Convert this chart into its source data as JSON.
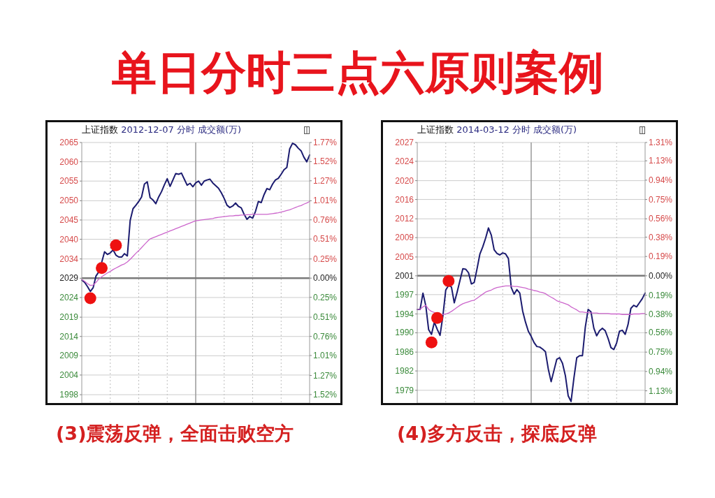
{
  "chart_data": [
    {
      "type": "line",
      "title": "单日分时三点六原则案例",
      "subtitle": "上证指数 2012-12-07 分时 成交额(万)",
      "annotations": [
        "(3)震荡反弹，全面击败空方"
      ],
      "categories": [
        null,
        null,
        null,
        null,
        null,
        null,
        null,
        null,
        null,
        null,
        null,
        null,
        null,
        null,
        null,
        null,
        null,
        null,
        null,
        null,
        null,
        null,
        null,
        null,
        null,
        null,
        null,
        null,
        null,
        null,
        null,
        null,
        null,
        null,
        null,
        null,
        null,
        null,
        null,
        null,
        null,
        null,
        null,
        null,
        null,
        null,
        null,
        null,
        null,
        null,
        null,
        null,
        null,
        null,
        null,
        null,
        null,
        null,
        null,
        null,
        null,
        null,
        null,
        null,
        null,
        null,
        null,
        null,
        null,
        null,
        null,
        null,
        null,
        null,
        null,
        null,
        null,
        null,
        null,
        null,
        null
      ],
      "series": [
        {
          "color": "#1b1b6f",
          "values": [
            2028.8,
            2028.2,
            2027.1,
            2025.8,
            2026.8,
            2029.9,
            2031.0,
            2033.5,
            2036.3,
            2035.6,
            2036.0,
            2036.8,
            2035.4,
            2034.9,
            2034.9,
            2035.8,
            2035.2,
            2044.6,
            2047.7,
            2048.6,
            2049.6,
            2050.8,
            2054.2,
            2054.8,
            2050.6,
            2050.0,
            2049.0,
            2050.8,
            2052.2,
            2054.0,
            2055.6,
            2053.6,
            2055.3,
            2057.0,
            2056.8,
            2057.1,
            2055.5,
            2053.9,
            2054.4,
            2053.5,
            2054.5,
            2055.0,
            2053.9,
            2055.0,
            2055.3,
            2055.5,
            2054.5,
            2053.8,
            2053.1,
            2051.9,
            2050.4,
            2048.6,
            2048.0,
            2048.4,
            2049.2,
            2048.3,
            2047.9,
            2046.2,
            2044.9,
            2045.6,
            2045.2,
            2047.0,
            2049.6,
            2049.3,
            2051.4,
            2053.0,
            2052.7,
            2054.2,
            2055.3,
            2055.7,
            2056.8,
            2058.0,
            2058.6,
            2063.5,
            2065.0,
            2064.6,
            2063.7,
            2063.0,
            2061.3,
            2060.1,
            2061.9
          ]
        },
        {
          "color": "#cc66cc",
          "values": [
            2029.0,
            2028.5,
            2027.9,
            2027.4,
            2027.5,
            2028.2,
            2029.1,
            2029.7,
            2030.2,
            2030.7,
            2031.1,
            2031.6,
            2032.0,
            2032.4,
            2032.8,
            2033.1,
            2033.6,
            2034.3,
            2035.1,
            2035.9,
            2036.6,
            2037.4,
            2038.2,
            2039.0,
            2039.7,
            2040.0,
            2040.3,
            2040.6,
            2040.9,
            2041.2,
            2041.5,
            2041.8,
            2042.1,
            2042.4,
            2042.7,
            2043.0,
            2043.3,
            2043.6,
            2043.9,
            2044.2,
            2044.5,
            2044.6,
            2044.7,
            2044.8,
            2044.9,
            2045.0,
            2045.1,
            2045.3,
            2045.4,
            2045.5,
            2045.6,
            2045.7,
            2045.8,
            2045.8,
            2045.9,
            2045.9,
            2046.0,
            2046.0,
            2046.1,
            2046.1,
            2046.2,
            2046.2,
            2046.2,
            2046.2,
            2046.2,
            2046.2,
            2046.3,
            2046.4,
            2046.5,
            2046.6,
            2046.8,
            2047.0,
            2047.2,
            2047.4,
            2047.7,
            2048.0,
            2048.3,
            2048.5,
            2048.9,
            2049.2,
            2049.6
          ]
        },
        {
          "type": "scatter",
          "marker": "circle",
          "color": "#ee1111",
          "values": [
            null,
            null,
            null,
            2024.0,
            null,
            null,
            null,
            2032.0,
            null,
            null,
            null,
            null,
            2038.0,
            null,
            null,
            null,
            null,
            null,
            null,
            null,
            null,
            null,
            null,
            null,
            null,
            null,
            null,
            null,
            null,
            null,
            null,
            null,
            null,
            null,
            null,
            null,
            null,
            null,
            null,
            null,
            null,
            null,
            null,
            null,
            null,
            null,
            null,
            null,
            null,
            null,
            null,
            null,
            null,
            null,
            null,
            null,
            null,
            null,
            null,
            null,
            null,
            null,
            null,
            null,
            null,
            null,
            null,
            null,
            null,
            null,
            null,
            null,
            null,
            null,
            null,
            null,
            null,
            null,
            null,
            null,
            null
          ]
        }
      ],
      "ylim": [
        1996.3,
        2065.2
      ],
      "yticks": [
        {
          "value": 1998.5,
          "label": "1998"
        },
        {
          "value": 2003.7,
          "label": "2004"
        },
        {
          "value": 2008.8,
          "label": "2009"
        },
        {
          "value": 2013.9,
          "label": "2014"
        },
        {
          "value": 2019.0,
          "label": "2019"
        },
        {
          "value": 2024.2,
          "label": "2024"
        },
        {
          "value": 2029.3,
          "label": "2029"
        },
        {
          "value": 2034.4,
          "label": "2034"
        },
        {
          "value": 2039.6,
          "label": "2040"
        },
        {
          "value": 2044.7,
          "label": "2045"
        },
        {
          "value": 2049.8,
          "label": "2050"
        },
        {
          "value": 2055.0,
          "label": "2055"
        },
        {
          "value": 2060.1,
          "label": "2060"
        },
        {
          "value": 2065.2,
          "label": "2065"
        }
      ],
      "y2lim": [
        -1.63,
        1.77
      ],
      "y2ticks": [
        {
          "value": -1.52,
          "label": "1.52%"
        },
        {
          "value": -1.27,
          "label": "1.27%"
        },
        {
          "value": -1.01,
          "label": "1.01%"
        },
        {
          "value": -0.76,
          "label": "0.76%"
        },
        {
          "value": -0.51,
          "label": "0.51%"
        },
        {
          "value": -0.25,
          "label": "0.25%"
        },
        {
          "value": 0,
          "label": "0.00%"
        },
        {
          "value": 0.25,
          "label": "0.25%"
        },
        {
          "value": 0.51,
          "label": "0.51%"
        },
        {
          "value": 0.76,
          "label": "0.76%"
        },
        {
          "value": 1.01,
          "label": "1.01%"
        },
        {
          "value": 1.27,
          "label": "1.27%"
        },
        {
          "value": 1.52,
          "label": "1.52%"
        },
        {
          "value": 1.77,
          "label": "1.77%"
        }
      ],
      "ref_lines": [
        {
          "axis": "y",
          "value": 2029.3,
          "color": "#7a7a7a"
        }
      ],
      "grid": true
    },
    {
      "type": "line",
      "subtitle": "上证指数 2014-03-12 分时 成交额(万)",
      "annotations": [
        "(4)多方反击，探底反弹"
      ],
      "categories": [
        null,
        null,
        null,
        null,
        null,
        null,
        null,
        null,
        null,
        null,
        null,
        null,
        null,
        null,
        null,
        null,
        null,
        null,
        null,
        null,
        null,
        null,
        null,
        null,
        null,
        null,
        null,
        null,
        null,
        null,
        null,
        null,
        null,
        null,
        null,
        null,
        null,
        null,
        null,
        null,
        null,
        null,
        null,
        null,
        null,
        null,
        null,
        null,
        null,
        null,
        null,
        null,
        null,
        null,
        null,
        null,
        null,
        null,
        null,
        null,
        null,
        null,
        null,
        null,
        null,
        null,
        null,
        null,
        null,
        null,
        null,
        null,
        null,
        null,
        null,
        null,
        null,
        null,
        null,
        null,
        null
      ],
      "series": [
        {
          "color": "#1b1b6f",
          "values": [
            1994.5,
            1994.5,
            1997.7,
            1995.2,
            1990.5,
            1989.6,
            1992.0,
            1990.6,
            1989.4,
            1993.2,
            1998.3,
            1999.2,
            1998.9,
            1995.8,
            1997.9,
            2000.2,
            2002.5,
            2002.4,
            2001.7,
            1999.5,
            1999.8,
            2002.5,
            2005.4,
            2006.8,
            2008.5,
            2010.5,
            2009.1,
            2006.2,
            2005.5,
            2005.2,
            2005.6,
            2005.4,
            2004.5,
            1998.8,
            1997.5,
            1998.4,
            1997.7,
            1994.2,
            1992.0,
            1990.2,
            1989.2,
            1988.0,
            1987.2,
            1987.1,
            1986.7,
            1986.2,
            1982.8,
            1980.3,
            1982.5,
            1984.7,
            1985.0,
            1983.9,
            1981.5,
            1977.5,
            1976.4,
            1981.0,
            1985.0,
            1985.4,
            1985.4,
            1991.0,
            1994.5,
            1994.0,
            1990.8,
            1989.3,
            1990.3,
            1990.8,
            1990.3,
            1988.8,
            1987.0,
            1986.6,
            1987.9,
            1990.2,
            1990.4,
            1989.6,
            1991.5,
            1994.7,
            1995.3,
            1995.0,
            1995.8,
            1996.6,
            1997.7
          ]
        },
        {
          "color": "#cc66cc",
          "values": [
            1994.5,
            1994.5,
            1995.0,
            1995.3,
            1994.5,
            1994.1,
            1993.9,
            null,
            null,
            1993.5,
            1993.6,
            1993.8,
            1994.1,
            1994.5,
            1994.9,
            1995.3,
            1995.6,
            1995.8,
            1996.0,
            1996.2,
            1996.3,
            1996.7,
            1997.1,
            1997.5,
            1997.9,
            1998.1,
            1998.3,
            1998.6,
            1998.8,
            1998.9,
            1999.0,
            1999.1,
            1999.1,
            1999.1,
            1999.0,
            1999.0,
            1998.9,
            1998.8,
            1998.7,
            1998.5,
            1998.4,
            1998.2,
            1998.1,
            1997.9,
            1997.8,
            1997.6,
            1997.2,
            1996.9,
            1996.6,
            1996.2,
            1996.0,
            1995.8,
            1995.6,
            1995.4,
            1995.0,
            1994.7,
            1994.4,
            1994.0,
            1994.0,
            1993.9,
            1993.9,
            1993.8,
            1993.8,
            1993.8,
            1993.7,
            1993.7,
            1993.7,
            1993.7,
            1993.6,
            1993.6,
            1993.6,
            1993.6,
            1993.5,
            1993.5,
            1993.5,
            1993.5,
            1993.6,
            1993.6,
            1993.6,
            1993.7,
            1993.7
          ]
        },
        {
          "type": "scatter",
          "marker": "circle",
          "color": "#ee1111",
          "values": [
            null,
            null,
            null,
            null,
            null,
            1988.0,
            null,
            1992.8,
            null,
            null,
            null,
            2000.1,
            null,
            null,
            null,
            null,
            null,
            null,
            null,
            null,
            null,
            null,
            null,
            null,
            null,
            null,
            null,
            null,
            null,
            null,
            null,
            null,
            null,
            null,
            null,
            null,
            null,
            null,
            null,
            null,
            null,
            null,
            null,
            null,
            null,
            null,
            null,
            null,
            null,
            null,
            null,
            null,
            null,
            null,
            null,
            null,
            null,
            null,
            null,
            null,
            null,
            null,
            null,
            null,
            null,
            null,
            null,
            null,
            null,
            null,
            null,
            null,
            null,
            null,
            null,
            null,
            null,
            null,
            null,
            null,
            null
          ]
        }
      ],
      "ylim": [
        1976.1,
        2027.3
      ],
      "yticks": [
        {
          "value": 1978.6,
          "label": "1979"
        },
        {
          "value": 1982.4,
          "label": "1982"
        },
        {
          "value": 1986.1,
          "label": "1986"
        },
        {
          "value": 1989.9,
          "label": "1990"
        },
        {
          "value": 1993.6,
          "label": "1994"
        },
        {
          "value": 1997.4,
          "label": "1997"
        },
        {
          "value": 2001.1,
          "label": "2001"
        },
        {
          "value": 2004.8,
          "label": "2005"
        },
        {
          "value": 2008.6,
          "label": "2009"
        },
        {
          "value": 2012.3,
          "label": "2012"
        },
        {
          "value": 2016.1,
          "label": "2016"
        },
        {
          "value": 2019.8,
          "label": "2020"
        },
        {
          "value": 2023.6,
          "label": "2024"
        },
        {
          "value": 2027.3,
          "label": "2027"
        }
      ],
      "y2lim": [
        -1.25,
        1.31
      ],
      "y2ticks": [
        {
          "value": -1.13,
          "label": "1.13%"
        },
        {
          "value": -0.94,
          "label": "0.94%"
        },
        {
          "value": -0.75,
          "label": "0.75%"
        },
        {
          "value": -0.56,
          "label": "0.56%"
        },
        {
          "value": -0.38,
          "label": "0.38%"
        },
        {
          "value": -0.19,
          "label": "0.19%"
        },
        {
          "value": 0,
          "label": "0.00%"
        },
        {
          "value": 0.19,
          "label": "0.19%"
        },
        {
          "value": 0.38,
          "label": "0.38%"
        },
        {
          "value": 0.56,
          "label": "0.56%"
        },
        {
          "value": 0.75,
          "label": "0.75%"
        },
        {
          "value": 0.94,
          "label": "0.94%"
        },
        {
          "value": 1.13,
          "label": "1.13%"
        },
        {
          "value": 1.31,
          "label": "1.31%"
        }
      ],
      "ref_lines": [
        {
          "axis": "y",
          "value": 2001.1,
          "color": "#7a7a7a"
        }
      ],
      "grid": true
    }
  ]
}
